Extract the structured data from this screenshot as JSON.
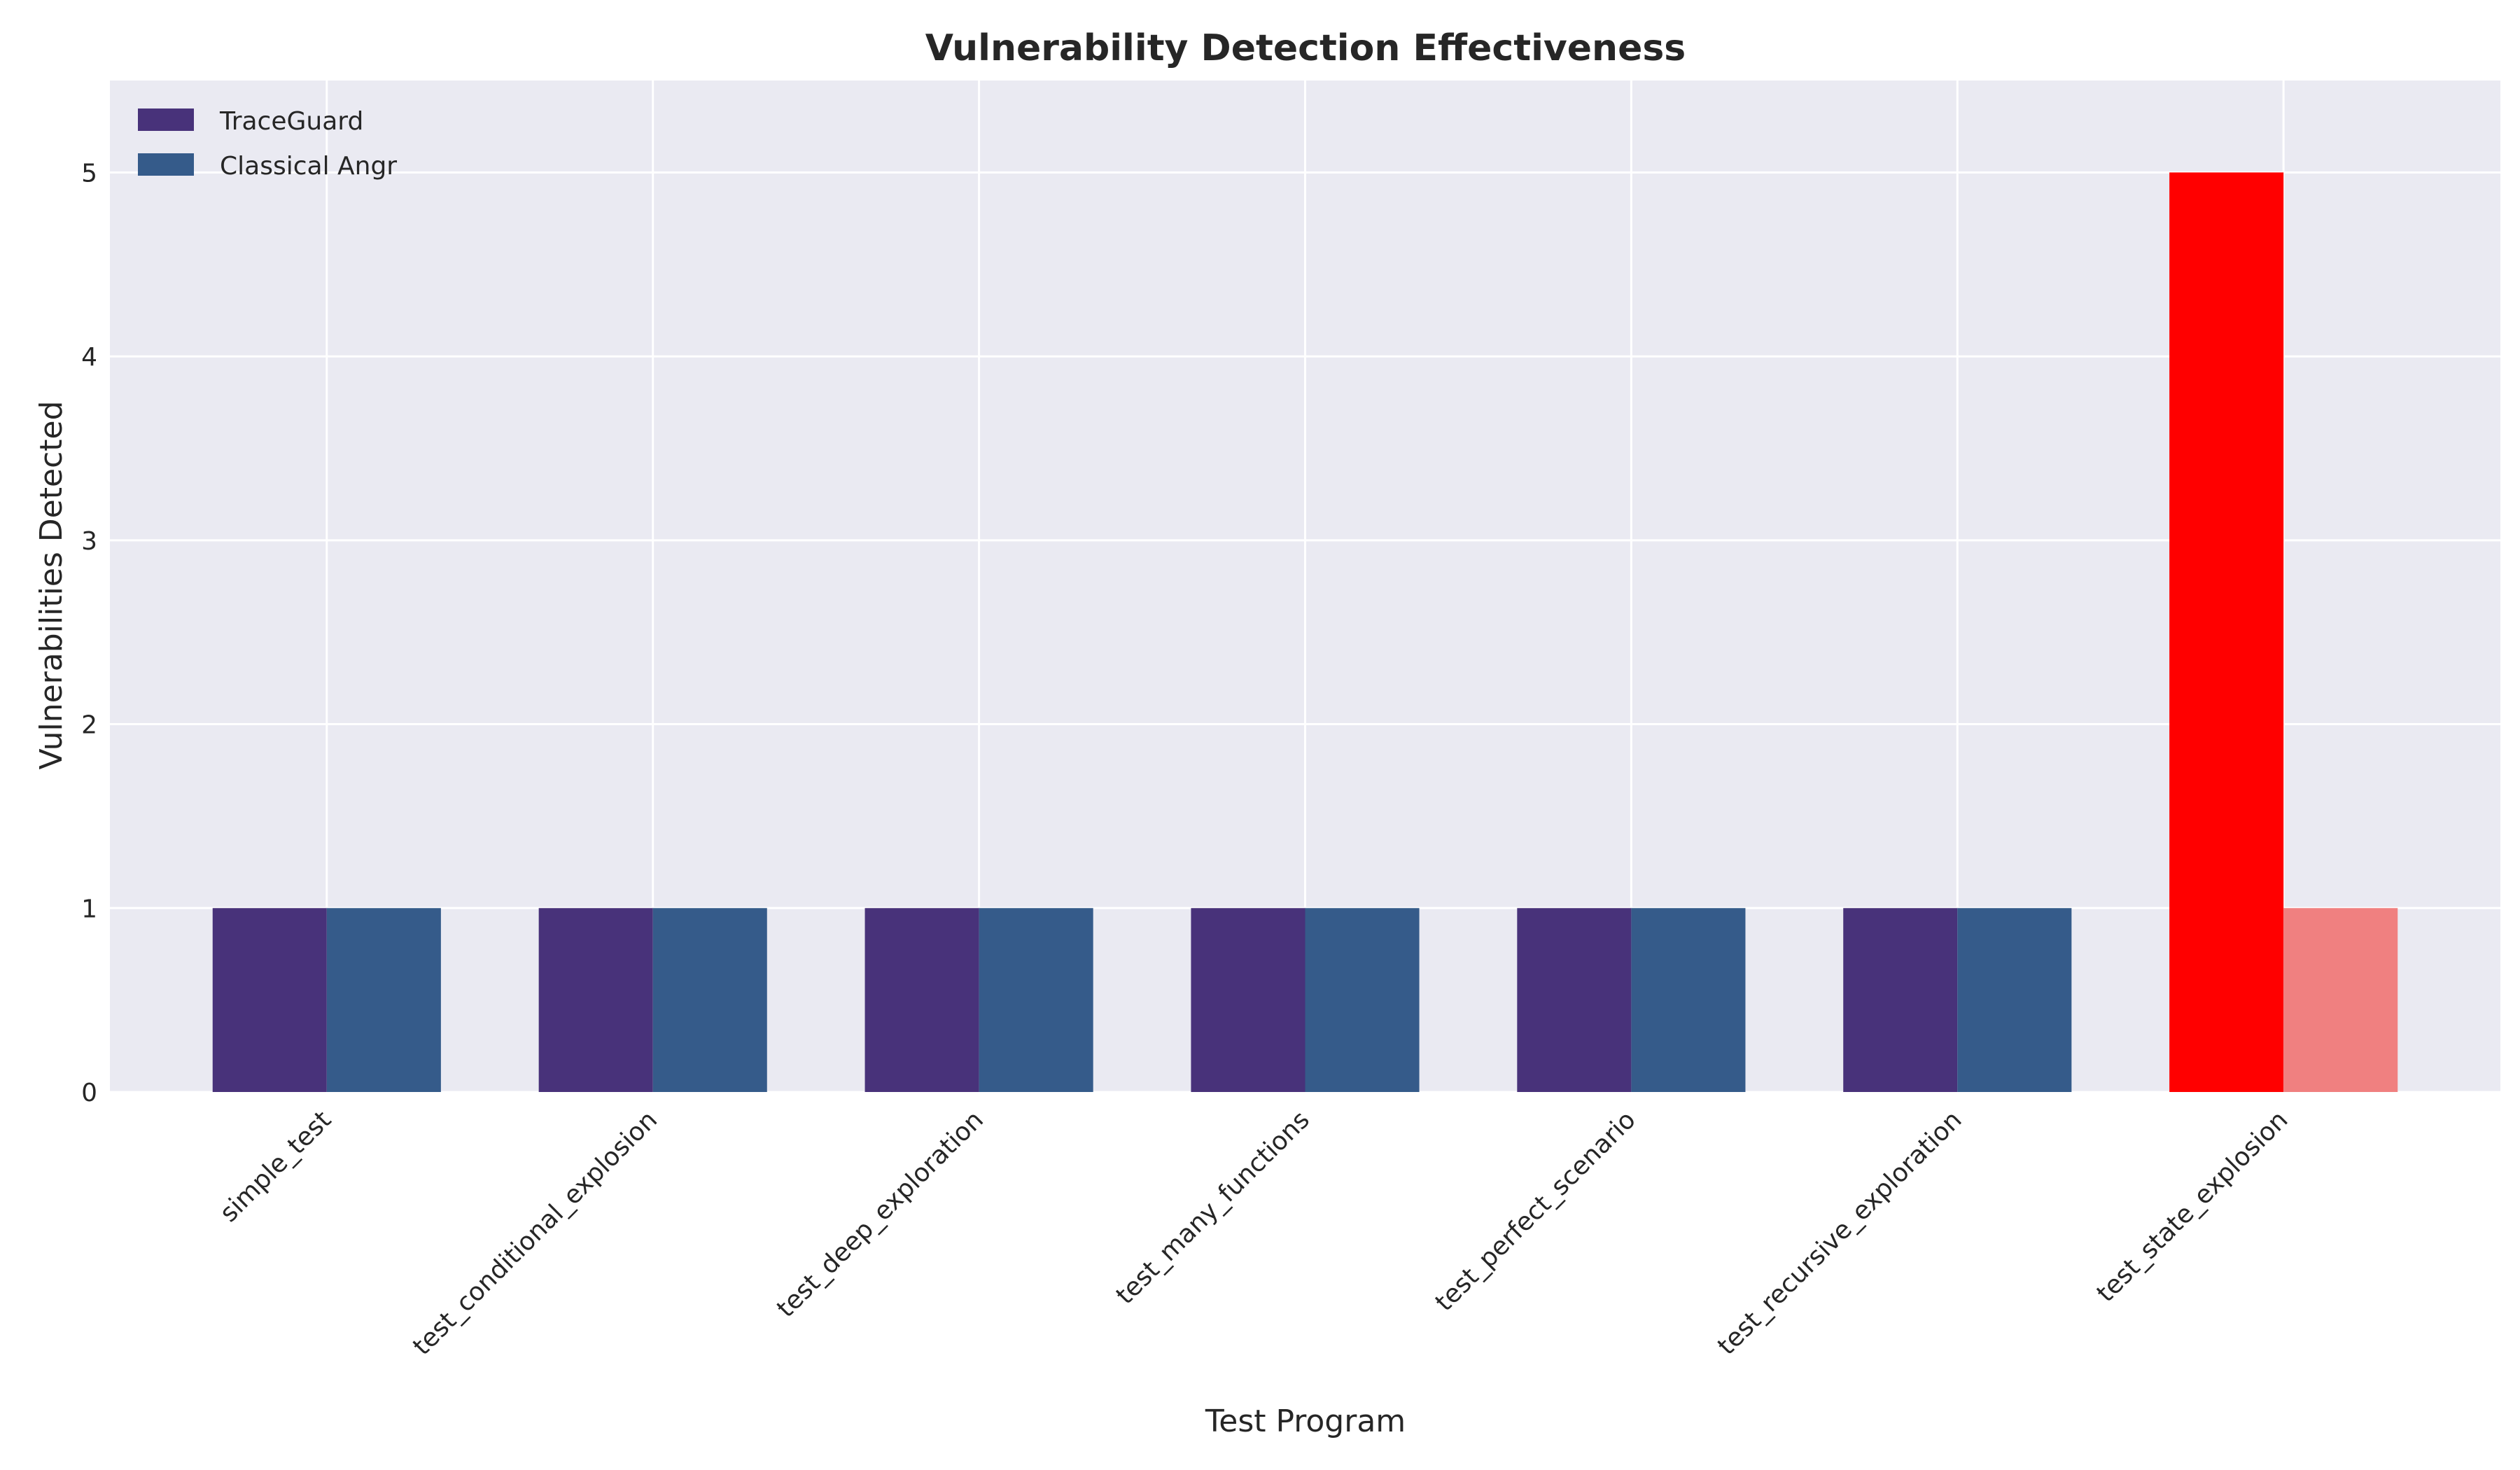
{
  "chart_data": {
    "type": "bar",
    "title": "Vulnerability Detection Effectiveness",
    "xlabel": "Test Program",
    "ylabel": "Vulnerabilities Detected",
    "categories": [
      "simple_test",
      "test_conditional_explosion",
      "test_deep_exploration",
      "test_many_functions",
      "test_perfect_scenario",
      "test_recursive_exploration",
      "test_state_explosion"
    ],
    "series": [
      {
        "name": "TraceGuard",
        "values": [
          1,
          1,
          1,
          1,
          1,
          1,
          5
        ],
        "color": "#48327a",
        "bar_colors": [
          "#48327a",
          "#48327a",
          "#48327a",
          "#48327a",
          "#48327a",
          "#48327a",
          "#ff0000"
        ]
      },
      {
        "name": "Classical Angr",
        "values": [
          1,
          1,
          1,
          1,
          1,
          1,
          1
        ],
        "color": "#355b8a",
        "bar_colors": [
          "#355b8a",
          "#355b8a",
          "#355b8a",
          "#355b8a",
          "#355b8a",
          "#355b8a",
          "#f08080"
        ]
      }
    ],
    "yticks": [
      0,
      1,
      2,
      3,
      4,
      5
    ],
    "ylim": [
      0,
      5.5
    ],
    "grid": true,
    "legend_position": "top-left",
    "background_color": "#eaeaf2",
    "grid_color": "#ffffff"
  }
}
